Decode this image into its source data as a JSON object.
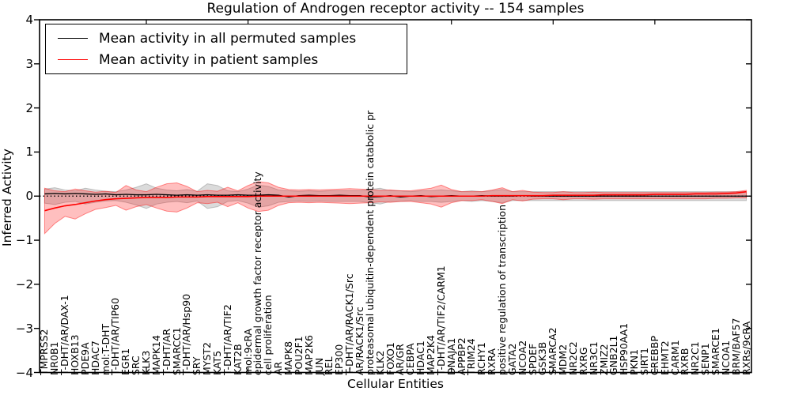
{
  "chart_data": {
    "type": "line",
    "title": "Regulation of Androgen receptor activity -- 154 samples",
    "xlabel": "Cellular Entities",
    "ylabel": "Inferred Activity",
    "ylim": [
      -4,
      4
    ],
    "yticks": [
      4,
      3,
      2,
      1,
      0,
      -1,
      -2,
      -3,
      -4
    ],
    "ytick_labels": [
      "4",
      "3",
      "2",
      "1",
      "0",
      "−1",
      "−2",
      "−3",
      "−4"
    ],
    "grid": false,
    "legend_position": "upper left",
    "zero_line": {
      "style": "dotted",
      "color": "#000000",
      "y": 0
    },
    "categories": [
      "TMPRSS2",
      "NR0B1",
      "T-DHT/AR/DAX-1",
      "HOXB13",
      "PDE9A",
      "HDAC7",
      "mol:T-DHT",
      "T-DHT/AR/TIP60",
      "EGR1",
      "SRC",
      "KLK3",
      "MAPK14",
      "T-DHT/AR",
      "SMARCC1",
      "T-DHT/AR/Hsp90",
      "SRY",
      "MYST2",
      "KAT5",
      "T-DHT/AR/TIF2",
      "KAT2B",
      "mol:9cRA",
      "epidermal growth factor receptor activity",
      "cell proliferation",
      "AR",
      "MAPK8",
      "POU2F1",
      "MAP2K6",
      "JUN",
      "REL",
      "EP300",
      "T-DHT/AR/RACK1/Src",
      "AR/RACK1/Src",
      "proteasomal ubiquitin-dependent protein catabolic pr",
      "KLK2",
      "FOXO1",
      "AR/GR",
      "CEBPA",
      "HDAC1",
      "MAP2K4",
      "T-DHT/AR/TIF2/CARM1",
      "DNAJA1",
      "APPBP2",
      "TRIM24",
      "RCHY1",
      "RXRA",
      "positive regulation of transcription",
      "GATA2",
      "NCOA2",
      "SPDEF",
      "GSK3B",
      "SMARCA2",
      "MDM2",
      "NR2C2",
      "RXRG",
      "NR3C1",
      "ZMIZ2",
      "GNB2L1",
      "HSP90AA1",
      "PKN1",
      "SIRT1",
      "CREBBP",
      "EHMT2",
      "CARM1",
      "RXRB",
      "NR2C1",
      "SENP1",
      "SMARCE1",
      "NCOA1",
      "BRM/BAF57",
      "RXRs/9cRA"
    ],
    "series": [
      {
        "name": "Mean activity in all permuted samples",
        "color": "#000000",
        "values": [
          0.05,
          0.06,
          0.05,
          0.06,
          0.05,
          0.04,
          0.05,
          0.03,
          0.04,
          0.03,
          0.03,
          0.04,
          0.03,
          0.02,
          0.03,
          0.02,
          0.03,
          0.02,
          0.02,
          0.03,
          0.02,
          0.02,
          0.03,
          0.02,
          -0.02,
          0.01,
          0.02,
          0.01,
          0.01,
          0.02,
          0.01,
          0.01,
          -0.02,
          -0.01,
          0.01,
          -0.02,
          0,
          0.01,
          -0.01,
          0,
          0.01,
          0,
          0,
          0.01,
          0,
          0,
          0,
          0.01,
          0,
          0,
          0,
          0,
          0,
          0,
          0,
          0,
          0,
          0,
          0,
          0,
          0,
          0,
          0,
          0,
          0,
          0,
          0,
          0,
          0,
          0
        ]
      },
      {
        "name": "Mean activity in patient samples",
        "color": "#ff0000",
        "values": [
          -0.33,
          -0.27,
          -0.22,
          -0.19,
          -0.15,
          -0.11,
          -0.08,
          -0.06,
          -0.05,
          -0.04,
          -0.03,
          -0.03,
          -0.03,
          -0.02,
          -0.02,
          -0.02,
          -0.01,
          -0.01,
          -0.01,
          -0.01,
          -0.01,
          0,
          0,
          0,
          0,
          0,
          0,
          0,
          0,
          0,
          0,
          0,
          0,
          0,
          0,
          0,
          0,
          0,
          0,
          0,
          0,
          0,
          0,
          0,
          0.01,
          0.01,
          0.01,
          0.01,
          0.01,
          0.01,
          0.02,
          0.02,
          0.02,
          0.02,
          0.02,
          0.03,
          0.03,
          0.03,
          0.03,
          0.03,
          0.04,
          0.04,
          0.04,
          0.04,
          0.05,
          0.05,
          0.05,
          0.06,
          0.07,
          0.1
        ]
      }
    ],
    "bands": [
      {
        "name": "permuted-samples-std-band",
        "fill": "#888888",
        "opacity": 0.3,
        "upper": [
          0.16,
          0.19,
          0.14,
          0.12,
          0.18,
          0.14,
          0.11,
          0.1,
          0.14,
          0.2,
          0.28,
          0.18,
          0.14,
          0.12,
          0.15,
          0.11,
          0.28,
          0.24,
          0.12,
          0.1,
          0.16,
          0.25,
          0.22,
          0.14,
          0.12,
          0.11,
          0.12,
          0.11,
          0.12,
          0.12,
          0.12,
          0.12,
          0.15,
          0.18,
          0.12,
          0.12,
          0.1,
          0.12,
          0.12,
          0.14,
          0.12,
          0.1,
          0.12,
          0.1,
          0.12,
          0.15,
          0.1,
          0.1,
          0.1,
          0.1,
          0.1,
          0.1,
          0.1,
          0.1,
          0.1,
          0.1,
          0.1,
          0.1,
          0.1,
          0.1,
          0.1,
          0.1,
          0.1,
          0.1,
          0.1,
          0.1,
          0.1,
          0.1,
          0.1,
          0.1
        ],
        "lower": [
          -0.16,
          -0.19,
          -0.14,
          -0.12,
          -0.18,
          -0.14,
          -0.11,
          -0.1,
          -0.14,
          -0.2,
          -0.28,
          -0.18,
          -0.14,
          -0.12,
          -0.15,
          -0.11,
          -0.28,
          -0.24,
          -0.12,
          -0.1,
          -0.16,
          -0.25,
          -0.22,
          -0.14,
          -0.12,
          -0.11,
          -0.12,
          -0.11,
          -0.12,
          -0.12,
          -0.12,
          -0.12,
          -0.15,
          -0.18,
          -0.12,
          -0.12,
          -0.1,
          -0.12,
          -0.12,
          -0.14,
          -0.12,
          -0.1,
          -0.12,
          -0.1,
          -0.12,
          -0.15,
          -0.1,
          -0.1,
          -0.1,
          -0.1,
          -0.1,
          -0.1,
          -0.1,
          -0.1,
          -0.1,
          -0.1,
          -0.1,
          -0.1,
          -0.1,
          -0.1,
          -0.1,
          -0.1,
          -0.1,
          -0.1,
          -0.1,
          -0.1,
          -0.1,
          -0.1,
          -0.1,
          -0.1
        ]
      },
      {
        "name": "patient-samples-std-band",
        "fill": "#ff0000",
        "opacity": 0.25,
        "upper": [
          0.18,
          0.12,
          0.1,
          0.16,
          0.12,
          0.09,
          0.11,
          0.08,
          0.24,
          0.14,
          0.1,
          0.2,
          0.28,
          0.3,
          0.22,
          0.1,
          0.13,
          0.11,
          0.2,
          0.12,
          0.24,
          0.33,
          0.3,
          0.2,
          0.15,
          0.14,
          0.15,
          0.14,
          0.15,
          0.16,
          0.17,
          0.16,
          0.15,
          0.13,
          0.14,
          0.12,
          0.12,
          0.15,
          0.18,
          0.25,
          0.15,
          0.1,
          0.1,
          0.1,
          0.14,
          0.19,
          0.1,
          0.13,
          0.09,
          0.08,
          0.08,
          0.1,
          0.08,
          0.08,
          0.09,
          0.08,
          0.08,
          0.08,
          0.08,
          0.08,
          0.08,
          0.08,
          0.08,
          0.08,
          0.08,
          0.08,
          0.09,
          0.09,
          0.1,
          0.13
        ],
        "lower": [
          -0.85,
          -0.62,
          -0.46,
          -0.52,
          -0.4,
          -0.3,
          -0.26,
          -0.21,
          -0.32,
          -0.24,
          -0.19,
          -0.27,
          -0.34,
          -0.36,
          -0.27,
          -0.15,
          -0.17,
          -0.14,
          -0.24,
          -0.15,
          -0.27,
          -0.35,
          -0.32,
          -0.21,
          -0.15,
          -0.14,
          -0.15,
          -0.14,
          -0.15,
          -0.16,
          -0.17,
          -0.16,
          -0.15,
          -0.13,
          -0.14,
          -0.12,
          -0.12,
          -0.15,
          -0.18,
          -0.25,
          -0.15,
          -0.1,
          -0.1,
          -0.08,
          -0.12,
          -0.17,
          -0.08,
          -0.11,
          -0.07,
          -0.06,
          -0.06,
          -0.08,
          -0.06,
          -0.06,
          -0.07,
          -0.06,
          -0.06,
          -0.06,
          -0.06,
          -0.06,
          -0.06,
          -0.06,
          -0.06,
          -0.06,
          -0.06,
          -0.06,
          -0.05,
          -0.05,
          -0.04,
          -0.04
        ]
      }
    ]
  }
}
